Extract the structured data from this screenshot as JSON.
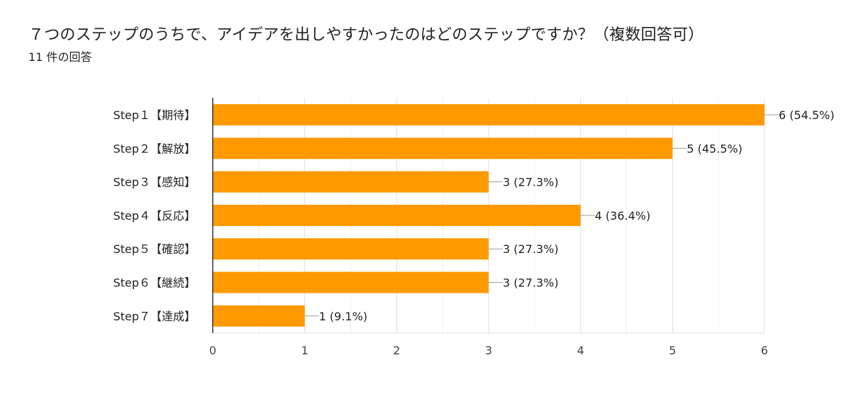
{
  "header": {
    "title": "７つのステップのうちで、アイデアを出しやすかったのはどのステップですか？（複数回答可）",
    "response_count": "11 件の回答"
  },
  "colors": {
    "bar": "#ff9900",
    "grid": "#e4e4e4",
    "axis": "#333333",
    "leader": "#9e9e9e"
  },
  "chart_data": {
    "type": "bar",
    "orientation": "horizontal",
    "title": "７つのステップのうちで、アイデアを出しやすかったのはどのステップですか？（複数回答可）",
    "xlabel": "",
    "ylabel": "",
    "xlim": [
      0,
      6
    ],
    "x_ticks": [
      0,
      1,
      2,
      3,
      4,
      5,
      6
    ],
    "grid": true,
    "categories": [
      "Step１【期待】",
      "Step２【解放】",
      "Step３【感知】",
      "Step４【反応】",
      "Step５【確認】",
      "Step６【継続】",
      "Step７【達成】"
    ],
    "values": [
      6,
      5,
      3,
      4,
      3,
      3,
      1
    ],
    "data_labels": [
      "6 (54.5%)",
      "5 (45.5%)",
      "3 (27.3%)",
      "4 (36.4%)",
      "3 (27.3%)",
      "3 (27.3%)",
      "1 (9.1%)"
    ]
  }
}
